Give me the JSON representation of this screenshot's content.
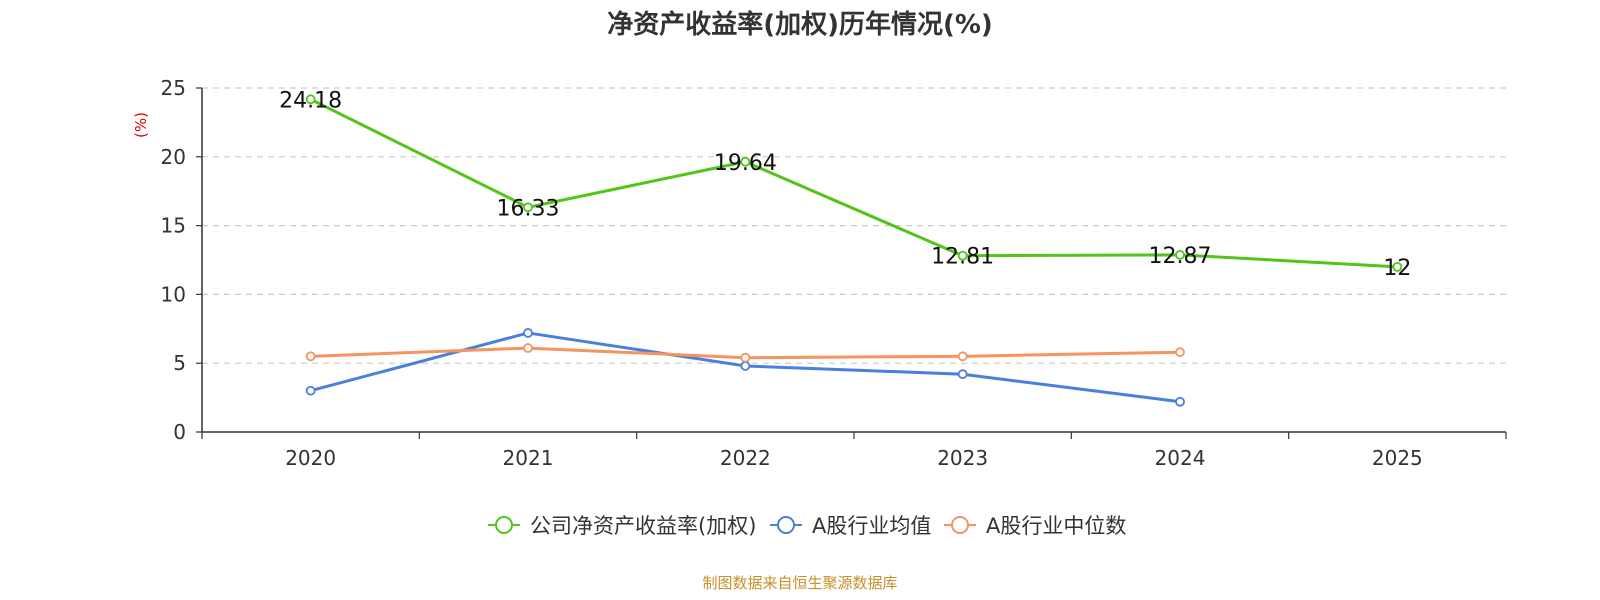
{
  "chart_data": {
    "type": "line",
    "title": "净资产收益率(加权)历年情况(%)",
    "ylabel": "(%)",
    "xlabel": "",
    "categories": [
      "2020",
      "2021",
      "2022",
      "2023",
      "2024",
      "2025"
    ],
    "ylim": [
      0,
      25
    ],
    "yticks": [
      0,
      5,
      10,
      15,
      20,
      25
    ],
    "grid": true,
    "legend_position": "bottom",
    "series": [
      {
        "name": "公司净资产收益率(加权)",
        "color": "#52c41a",
        "values": [
          24.18,
          16.33,
          19.64,
          12.81,
          12.87,
          12
        ],
        "labels": [
          "24.18",
          "16.33",
          "19.64",
          "12.81",
          "12.87",
          "12"
        ]
      },
      {
        "name": "A股行业均值",
        "color": "#4a7fdb",
        "values": [
          3.0,
          7.2,
          4.8,
          4.2,
          2.2,
          null
        ]
      },
      {
        "name": "A股行业中位数",
        "color": "#f6935e",
        "values": [
          5.5,
          6.1,
          5.4,
          5.5,
          5.8,
          null
        ]
      }
    ]
  },
  "footer": {
    "source": "制图数据来自恒生聚源数据库"
  }
}
